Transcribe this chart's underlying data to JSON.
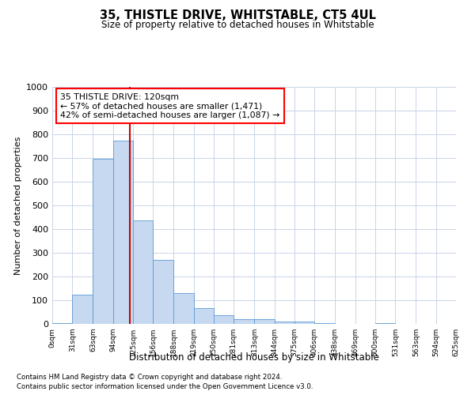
{
  "title1": "35, THISTLE DRIVE, WHITSTABLE, CT5 4UL",
  "title2": "Size of property relative to detached houses in Whitstable",
  "xlabel": "Distribution of detached houses by size in Whitstable",
  "ylabel": "Number of detached properties",
  "footnote1": "Contains HM Land Registry data © Crown copyright and database right 2024.",
  "footnote2": "Contains public sector information licensed under the Open Government Licence v3.0.",
  "annotation_line1": "35 THISTLE DRIVE: 120sqm",
  "annotation_line2": "← 57% of detached houses are smaller (1,471)",
  "annotation_line3": "42% of semi-detached houses are larger (1,087) →",
  "bar_color": "#c6d9f0",
  "bar_edge_color": "#5b9bd5",
  "vline_color": "#cc0000",
  "vline_x": 120,
  "background_color": "#ffffff",
  "grid_color": "#c8d4e8",
  "bins": [
    0,
    31,
    63,
    94,
    125,
    156,
    188,
    219,
    250,
    281,
    313,
    344,
    375,
    406,
    438,
    469,
    500,
    531,
    563,
    594,
    625
  ],
  "bin_labels": [
    "0sqm",
    "31sqm",
    "63sqm",
    "94sqm",
    "125sqm",
    "156sqm",
    "188sqm",
    "219sqm",
    "250sqm",
    "281sqm",
    "313sqm",
    "344sqm",
    "375sqm",
    "406sqm",
    "438sqm",
    "469sqm",
    "500sqm",
    "531sqm",
    "563sqm",
    "594sqm",
    "625sqm"
  ],
  "values": [
    5,
    125,
    697,
    775,
    438,
    270,
    130,
    68,
    37,
    20,
    20,
    10,
    10,
    5,
    0,
    0,
    5,
    0,
    0,
    0
  ],
  "ylim": [
    0,
    1000
  ],
  "yticks": [
    0,
    100,
    200,
    300,
    400,
    500,
    600,
    700,
    800,
    900,
    1000
  ]
}
